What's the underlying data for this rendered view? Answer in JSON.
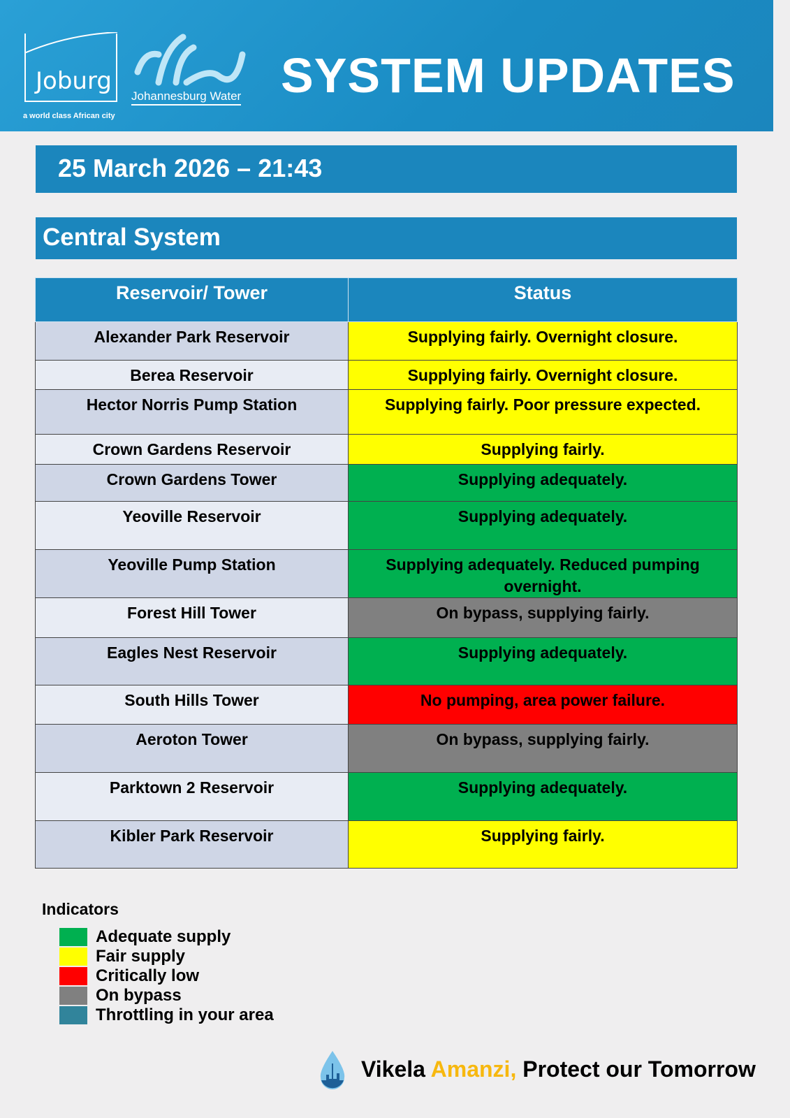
{
  "header": {
    "logo_text": "Joburg",
    "tagline": "a world class African city",
    "water_logo_text": "Johannesburg Water",
    "title": "SYSTEM UPDATES"
  },
  "date": "25 March 2026 – 21:43",
  "system": "Central System",
  "table": {
    "headers": [
      "Reservoir/ Tower",
      "Status"
    ],
    "rows": [
      {
        "name": "Alexander Park Reservoir",
        "status": "Supplying fairly. Overnight closure.",
        "color": "#ffff00"
      },
      {
        "name": "Berea Reservoir",
        "status": "Supplying fairly. Overnight closure.",
        "color": "#ffff00"
      },
      {
        "name": "Hector Norris Pump Station",
        "status": "Supplying fairly. Poor pressure expected.",
        "color": "#ffff00"
      },
      {
        "name": "Crown Gardens Reservoir",
        "status": "Supplying fairly.",
        "color": "#ffff00"
      },
      {
        "name": "Crown Gardens Tower",
        "status": "Supplying adequately.",
        "color": "#00b050"
      },
      {
        "name": "Yeoville Reservoir",
        "status": "Supplying adequately.",
        "color": "#00b050"
      },
      {
        "name": "Yeoville Pump Station",
        "status": "Supplying adequately. Reduced pumping overnight.",
        "color": "#00b050"
      },
      {
        "name": "Forest Hill Tower",
        "status": "On bypass, supplying fairly.",
        "color": "#808080"
      },
      {
        "name": "Eagles Nest Reservoir",
        "status": "Supplying adequately.",
        "color": "#00b050"
      },
      {
        "name": "South Hills Tower",
        "status": "No pumping, area power failure.",
        "color": "#ff0000"
      },
      {
        "name": "Aeroton Tower",
        "status": "On bypass, supplying fairly.",
        "color": "#808080"
      },
      {
        "name": "Parktown 2 Reservoir",
        "status": "Supplying adequately.",
        "color": "#00b050"
      },
      {
        "name": "Kibler Park Reservoir",
        "status": "Supplying fairly.",
        "color": "#ffff00"
      }
    ]
  },
  "indicators": {
    "title": "Indicators",
    "items": [
      {
        "label": "Adequate supply",
        "color": "#00b050"
      },
      {
        "label": "Fair supply",
        "color": "#ffff00"
      },
      {
        "label": "Critically low",
        "color": "#ff0000"
      },
      {
        "label": "On bypass",
        "color": "#808080"
      },
      {
        "label": "Throttling in your area",
        "color": "#31849b"
      }
    ]
  },
  "footer": {
    "part1": "Vikela ",
    "part2": "Amanzi,",
    "part3": " Protect our Tomorrow",
    "accent": "#f7b80f"
  }
}
